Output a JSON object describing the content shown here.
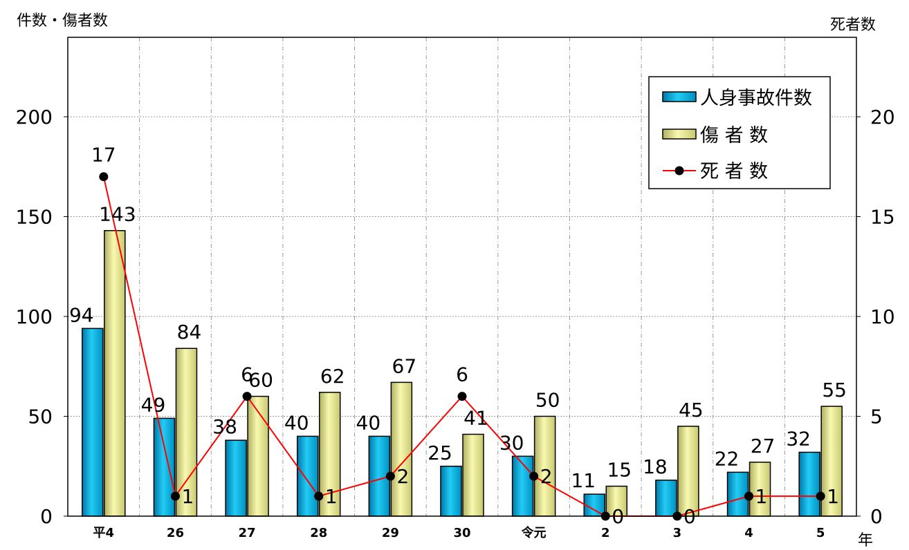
{
  "chart_data": {
    "type": "bar",
    "y_left_label": "件数・傷者数",
    "y_right_label": "死者数",
    "x_unit_label": "年",
    "categories": [
      "平4",
      "26",
      "27",
      "28",
      "29",
      "30",
      "令元",
      "2",
      "3",
      "4",
      "5"
    ],
    "series": [
      {
        "name": "人身事故件数",
        "type": "bar",
        "axis": "left",
        "values": [
          94,
          49,
          38,
          40,
          40,
          25,
          30,
          11,
          18,
          22,
          32
        ],
        "color": "#00a8d8"
      },
      {
        "name": "傷 者 数",
        "type": "bar",
        "axis": "left",
        "values": [
          143,
          84,
          60,
          62,
          67,
          41,
          50,
          15,
          45,
          27,
          55
        ],
        "color": "#e8e89a"
      },
      {
        "name": "死 者 数",
        "type": "line",
        "axis": "right",
        "values": [
          17,
          1,
          6,
          1,
          2,
          6,
          2,
          0,
          0,
          1,
          1
        ],
        "color": "#ff0000"
      }
    ],
    "y_left": {
      "min": 0,
      "max": 200,
      "ticks": [
        0,
        50,
        100,
        150,
        200
      ]
    },
    "y_right": {
      "min": 0,
      "max": 20,
      "ticks": [
        0,
        5,
        10,
        15,
        20
      ]
    },
    "grid": "vertical dashed + horizontal at major ticks",
    "legend_position": "top-right"
  }
}
